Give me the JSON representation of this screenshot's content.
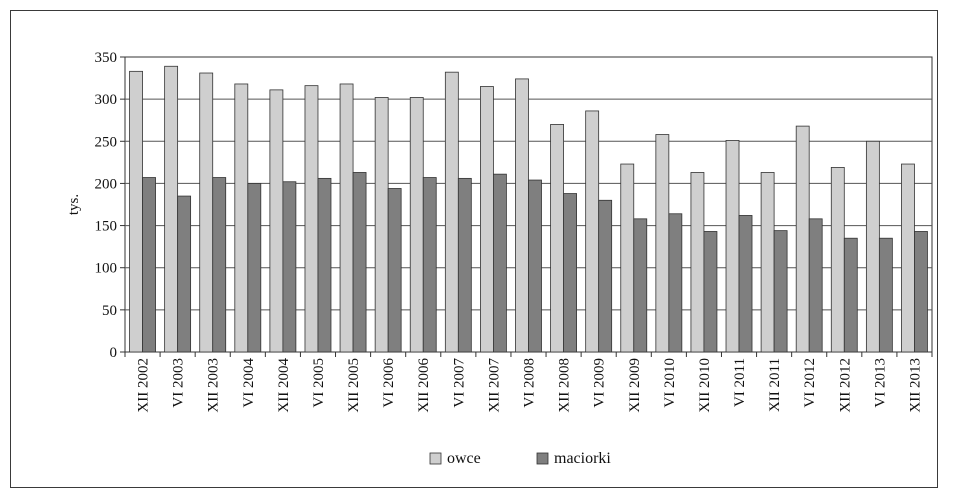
{
  "chart_data": {
    "type": "bar",
    "ylabel": "tys.",
    "xlabel": "",
    "ylim": [
      0,
      350
    ],
    "yticks": [
      0,
      50,
      100,
      150,
      200,
      250,
      300,
      350
    ],
    "grid": true,
    "legend_position": "bottom-center",
    "categories": [
      "XII 2002",
      "VI 2003",
      "XII 2003",
      "VI 2004",
      "XII 2004",
      "VI 2005",
      "XII 2005",
      "VI 2006",
      "XII 2006",
      "VI 2007",
      "XII 2007",
      "VI 2008",
      "XII 2008",
      "VI 2009",
      "XII 2009",
      "VI 2010",
      "XII 2010",
      "VI 2011",
      "XII 2011",
      "VI 2012",
      "XII 2012",
      "VI 2013",
      "XII 2013"
    ],
    "series": [
      {
        "name": "owce",
        "color": "#cfcfcf",
        "values": [
          333,
          339,
          331,
          318,
          311,
          316,
          318,
          302,
          302,
          332,
          315,
          324,
          270,
          286,
          223,
          258,
          213,
          251,
          213,
          268,
          219,
          250,
          223
        ]
      },
      {
        "name": "maciorki",
        "color": "#7f7f7f",
        "values": [
          207,
          185,
          207,
          200,
          202,
          206,
          213,
          194,
          207,
          206,
          211,
          204,
          188,
          180,
          158,
          164,
          143,
          162,
          144,
          158,
          135,
          135,
          143
        ]
      }
    ]
  }
}
